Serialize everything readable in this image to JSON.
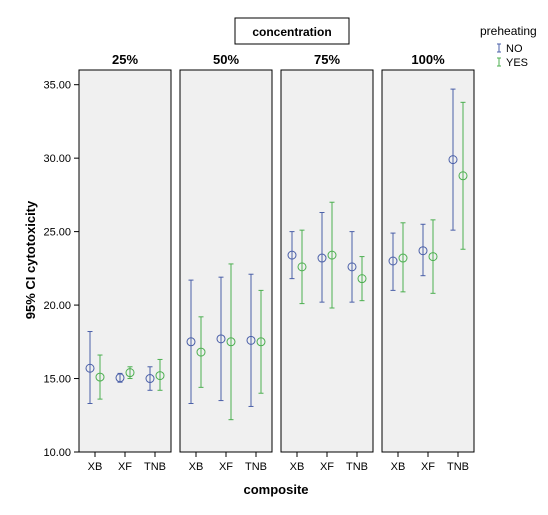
{
  "chart_data": {
    "type": "error-bar",
    "facet_title": "concentration",
    "panels": [
      "25%",
      "50%",
      "75%",
      "100%"
    ],
    "categories": [
      "XB",
      "XF",
      "TNB"
    ],
    "xlabel": "composite",
    "ylabel": "95% CI cytotoxicity",
    "ylim": [
      10,
      36
    ],
    "yticks": [
      "10.00",
      "15.00",
      "20.00",
      "25.00",
      "30.00",
      "35.00"
    ],
    "legend_title": "preheating",
    "legend_placement": "top-right",
    "grid": false,
    "series": [
      {
        "name": "NO",
        "color": "#4a5fa8",
        "points": [
          {
            "panel": "25%",
            "category": "XB",
            "mean": 15.7,
            "lower": 13.3,
            "upper": 18.2
          },
          {
            "panel": "25%",
            "category": "XF",
            "mean": 15.05,
            "lower": 14.75,
            "upper": 15.35
          },
          {
            "panel": "25%",
            "category": "TNB",
            "mean": 15.0,
            "lower": 14.2,
            "upper": 15.8
          },
          {
            "panel": "50%",
            "category": "XB",
            "mean": 17.5,
            "lower": 13.3,
            "upper": 21.7
          },
          {
            "panel": "50%",
            "category": "XF",
            "mean": 17.7,
            "lower": 13.5,
            "upper": 21.9
          },
          {
            "panel": "50%",
            "category": "TNB",
            "mean": 17.6,
            "lower": 13.1,
            "upper": 22.1
          },
          {
            "panel": "75%",
            "category": "XB",
            "mean": 23.4,
            "lower": 21.8,
            "upper": 25.0
          },
          {
            "panel": "75%",
            "category": "XF",
            "mean": 23.2,
            "lower": 20.2,
            "upper": 26.3
          },
          {
            "panel": "75%",
            "category": "TNB",
            "mean": 22.6,
            "lower": 20.2,
            "upper": 25.0
          },
          {
            "panel": "100%",
            "category": "XB",
            "mean": 23.0,
            "lower": 21.0,
            "upper": 24.9
          },
          {
            "panel": "100%",
            "category": "XF",
            "mean": 23.7,
            "lower": 22.0,
            "upper": 25.5
          },
          {
            "panel": "100%",
            "category": "TNB",
            "mean": 29.9,
            "lower": 25.1,
            "upper": 34.7
          }
        ]
      },
      {
        "name": "YES",
        "color": "#4caf50",
        "points": [
          {
            "panel": "25%",
            "category": "XB",
            "mean": 15.1,
            "lower": 13.6,
            "upper": 16.6
          },
          {
            "panel": "25%",
            "category": "XF",
            "mean": 15.4,
            "lower": 15.0,
            "upper": 15.8
          },
          {
            "panel": "25%",
            "category": "TNB",
            "mean": 15.2,
            "lower": 14.2,
            "upper": 16.3
          },
          {
            "panel": "50%",
            "category": "XB",
            "mean": 16.8,
            "lower": 14.4,
            "upper": 19.2
          },
          {
            "panel": "50%",
            "category": "XF",
            "mean": 17.5,
            "lower": 12.2,
            "upper": 22.8
          },
          {
            "panel": "50%",
            "category": "TNB",
            "mean": 17.5,
            "lower": 14.0,
            "upper": 21.0
          },
          {
            "panel": "75%",
            "category": "XB",
            "mean": 22.6,
            "lower": 20.1,
            "upper": 25.1
          },
          {
            "panel": "75%",
            "category": "XF",
            "mean": 23.4,
            "lower": 19.8,
            "upper": 27.0
          },
          {
            "panel": "75%",
            "category": "TNB",
            "mean": 21.8,
            "lower": 20.3,
            "upper": 23.3
          },
          {
            "panel": "100%",
            "category": "XB",
            "mean": 23.2,
            "lower": 20.9,
            "upper": 25.6
          },
          {
            "panel": "100%",
            "category": "XF",
            "mean": 23.3,
            "lower": 20.8,
            "upper": 25.8
          },
          {
            "panel": "100%",
            "category": "TNB",
            "mean": 28.8,
            "lower": 23.8,
            "upper": 33.8
          }
        ]
      }
    ]
  }
}
